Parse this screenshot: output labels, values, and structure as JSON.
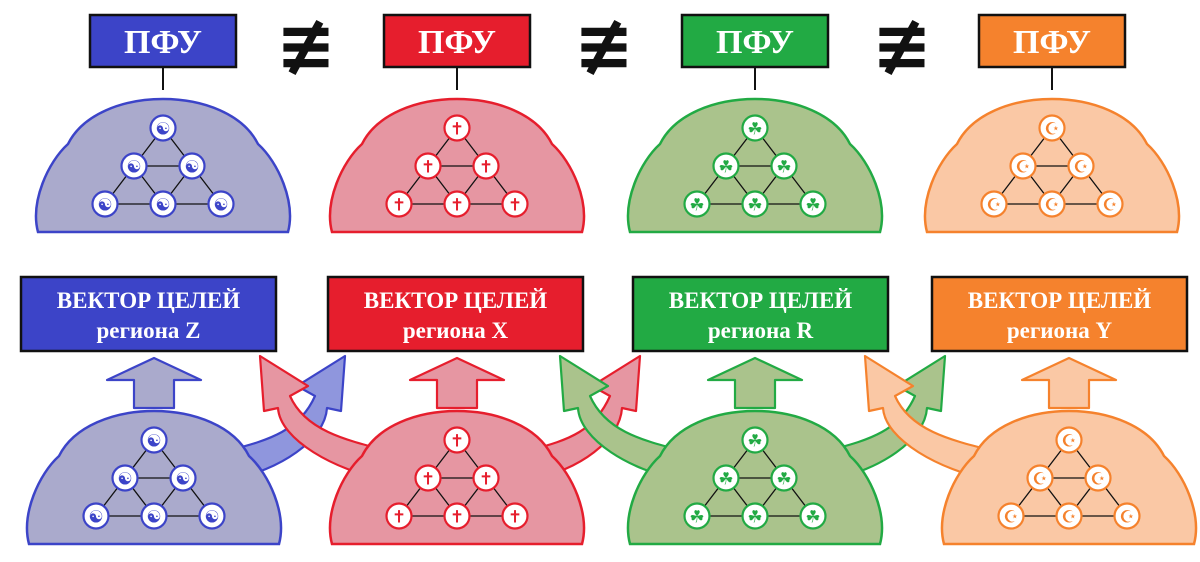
{
  "header_label": "ПФУ",
  "not_equal_symbol": "≢",
  "vector_line1": "ВЕКТОР ЦЕЛЕЙ",
  "regions": [
    {
      "id": "z",
      "color": "#3c44c8",
      "fill": "#aaaacc",
      "symbol": "☯",
      "symbol_name": "yin-yang-icon",
      "vector_line2": "региона Z"
    },
    {
      "id": "x",
      "color": "#e61e2d",
      "fill": "#e696a2",
      "symbol": "✝",
      "symbol_name": "cross-icon",
      "vector_line2": "региона X"
    },
    {
      "id": "r",
      "color": "#22aa44",
      "fill": "#aac38c",
      "symbol": "☘",
      "symbol_name": "triquetra-icon",
      "vector_line2": "региона R"
    },
    {
      "id": "y",
      "color": "#f5822d",
      "fill": "#fac8a5",
      "symbol": "☪",
      "symbol_name": "crescent-star-icon",
      "vector_line2": "региона Y"
    }
  ]
}
